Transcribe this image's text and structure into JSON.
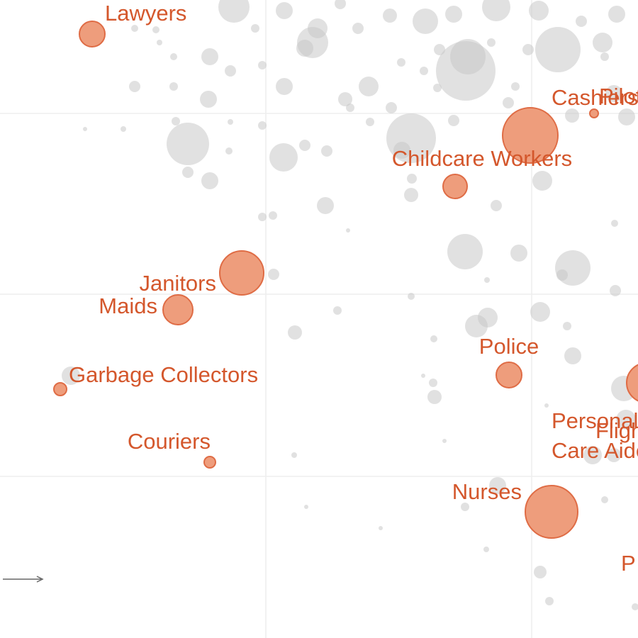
{
  "chart_data": {
    "type": "bubble",
    "xlim": [
      0,
      900
    ],
    "ylim": [
      900,
      0
    ],
    "xticks": [
      375,
      750
    ],
    "yticks": [
      228,
      485,
      740
    ],
    "grid": true,
    "highlight_color": "#ee9d7c",
    "other_color": "#c8c8c8",
    "points": [
      {
        "label": [
          "Nurses"
        ],
        "x": 778,
        "y": 178,
        "size": 37
      },
      {
        "label": [
          "Couriers"
        ],
        "x": 296,
        "y": 248,
        "size": 8
      },
      {
        "label": [
          "Garbage Collectors"
        ],
        "x": 85,
        "y": 351,
        "size": 9
      },
      {
        "label": [
          "Police"
        ],
        "x": 718,
        "y": 371,
        "size": 18
      },
      {
        "label": [
          "Maids"
        ],
        "x": 251,
        "y": 463,
        "size": 21
      },
      {
        "label": [
          "Janitors"
        ],
        "x": 341,
        "y": 515,
        "size": 31
      },
      {
        "label": [
          "Childcare Workers"
        ],
        "x": 642,
        "y": 637,
        "size": 17
      },
      {
        "label": [
          "Cashiers"
        ],
        "x": 748,
        "y": 709,
        "size": 39
      },
      {
        "label": [
          "Lawyers"
        ],
        "x": 130,
        "y": 852,
        "size": 18
      },
      {
        "label": [
          "Pilots"
        ],
        "x": 838,
        "y": 740,
        "size": 6
      },
      {
        "label": [
          "Personal",
          "Care Aides"
        ],
        "x": 912,
        "y": 360,
        "size": 28
      },
      {
        "label": [
          "Flight Attendants"
        ],
        "x": 930,
        "y": 265,
        "size": 14
      },
      {
        "label": [
          "P"
        ],
        "x": 930,
        "y": 100,
        "size": 12
      }
    ],
    "others": {
      "x": [
        775,
        762,
        896,
        686,
        537,
        656,
        702,
        853,
        432,
        415,
        627,
        836,
        866,
        883,
        613,
        611,
        597,
        771,
        880,
        100,
        416,
        476,
        612,
        672,
        688,
        762,
        808,
        800,
        868,
        808,
        793,
        656,
        732,
        580,
        687,
        386,
        459,
        370,
        385,
        491,
        580,
        581,
        700,
        765,
        867,
        296,
        265,
        265,
        400,
        323,
        461,
        430,
        580,
        567,
        640,
        522,
        494,
        552,
        807,
        884,
        866,
        190,
        245,
        294,
        401,
        487,
        520,
        617,
        657,
        660,
        717,
        727,
        787,
        853,
        325,
        296,
        370,
        441,
        448,
        430,
        566,
        598,
        620,
        693,
        745,
        850,
        330,
        401,
        220,
        190,
        360,
        505,
        550,
        600,
        640,
        700,
        760,
        820,
        870,
        480,
        174,
        120,
        248,
        370,
        325,
        245,
        225
      ],
      "y": [
        52,
        93,
        44,
        125,
        155,
        185,
        215,
        195,
        185,
        258,
        278,
        258,
        258,
        308,
        340,
        360,
        370,
        328,
        352,
        370,
        431,
        462,
        422,
        440,
        452,
        460,
        398,
        440,
        490,
        522,
        512,
        545,
        543,
        482,
        505,
        513,
        610,
        594,
        596,
        575,
        625,
        648,
        610,
        645,
        585,
        645,
        657,
        697,
        678,
        687,
        687,
        695,
        705,
        688,
        730,
        728,
        748,
        748,
        737,
        735,
        768,
        778,
        778,
        760,
        778,
        760,
        778,
        776,
        800,
        820,
        755,
        778,
        830,
        820,
        800,
        820,
        808,
        840,
        860,
        832,
        812,
        800,
        830,
        840,
        830,
        840,
        890,
        885,
        858,
        860,
        860,
        860,
        878,
        870,
        880,
        890,
        885,
        870,
        880,
        895,
        718,
        718,
        729,
        723,
        728,
        820,
        840
      ],
      "size": [
        6,
        9,
        5,
        4,
        3,
        6,
        12,
        5,
        3,
        4,
        3,
        13,
        10,
        14,
        10,
        6,
        3,
        3,
        18,
        13,
        10,
        6,
        5,
        16,
        14,
        14,
        12,
        6,
        8,
        25,
        8,
        25,
        12,
        5,
        4,
        8,
        12,
        6,
        6,
        3,
        10,
        7,
        8,
        14,
        5,
        12,
        8,
        30,
        20,
        5,
        8,
        8,
        35,
        12,
        8,
        6,
        6,
        8,
        10,
        12,
        12,
        8,
        6,
        12,
        12,
        10,
        14,
        6,
        42,
        25,
        8,
        6,
        32,
        6,
        8,
        12,
        6,
        22,
        14,
        12,
        6,
        6,
        8,
        6,
        8,
        14,
        22,
        12,
        5,
        5,
        6,
        8,
        10,
        18,
        12,
        20,
        14,
        8,
        12,
        8,
        4,
        3,
        6,
        6,
        4,
        5,
        4
      ]
    }
  }
}
